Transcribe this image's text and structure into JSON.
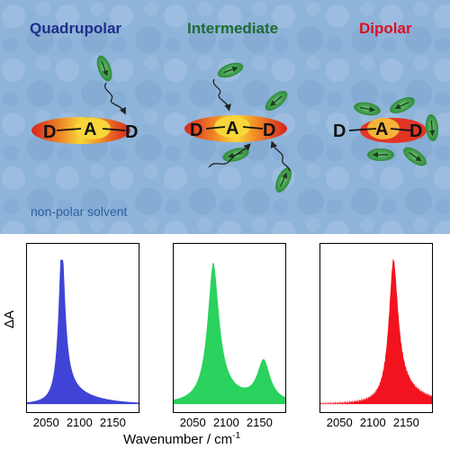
{
  "figure": {
    "regimes": {
      "quadrupolar": {
        "label": "Quadrupolar",
        "color": "#1f2e8a"
      },
      "intermediate": {
        "label": "Intermediate",
        "color": "#1e6b34"
      },
      "dipolar": {
        "label": "Dipolar",
        "color": "#dd1022"
      }
    },
    "molecule_labels": {
      "donor": "D",
      "acceptor": "A"
    },
    "solvent_label": "non-polar solvent",
    "colors": {
      "background": "#8fb3d8",
      "solvent": "#3e9f4a",
      "molecule_outer": "#e0342a",
      "molecule_center": "#f6d035"
    },
    "icons": [
      "solvent-molecule-icon",
      "curly-arrow-icon"
    ]
  },
  "chart_data": {
    "type": "area",
    "xlabel": "Wavenumber / cm",
    "xlabel_superscript": "-1",
    "ylabel": "ΔA",
    "xlim": [
      2020,
      2190
    ],
    "x_ticks": [
      "2050",
      "2100",
      "2150"
    ],
    "panels": [
      {
        "name": "Quadrupolar",
        "color": "#3f44d6",
        "peaks": [
          {
            "center": 2073,
            "width": 6,
            "height": 1.0,
            "tail": 0.15
          }
        ]
      },
      {
        "name": "Intermediate",
        "color": "#2ad25e",
        "peaks": [
          {
            "center": 2080,
            "width": 11,
            "height": 0.88,
            "tail": 0.1
          },
          {
            "center": 2157,
            "width": 12,
            "height": 0.28,
            "tail": 0.0
          }
        ]
      },
      {
        "name": "Dipolar",
        "color": "#f2131e",
        "peaks": [
          {
            "center": 2131,
            "width": 9,
            "height": 0.86,
            "tail": 0.16
          }
        ]
      }
    ]
  }
}
